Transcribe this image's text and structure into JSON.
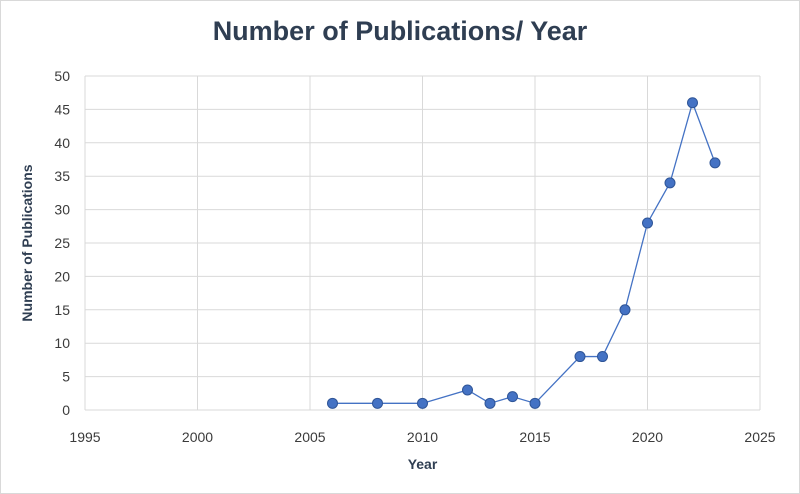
{
  "chart_data": {
    "type": "scatter",
    "title": "Number of Publications/ Year",
    "xlabel": "Year",
    "ylabel": "Number of Publications",
    "xlim": [
      1995,
      2025
    ],
    "ylim": [
      0,
      50
    ],
    "xticks": [
      1995,
      2000,
      2005,
      2010,
      2015,
      2020,
      2025
    ],
    "yticks": [
      0,
      5,
      10,
      15,
      20,
      25,
      30,
      35,
      40,
      45,
      50
    ],
    "grid": true,
    "series": [
      {
        "x": [
          2006,
          2008,
          2010,
          2012,
          2013,
          2014,
          2015,
          2017,
          2018,
          2019,
          2020,
          2021,
          2022,
          2023
        ],
        "y": [
          1,
          1,
          1,
          3,
          1,
          2,
          1,
          8,
          8,
          15,
          28,
          34,
          46,
          37
        ]
      }
    ],
    "line_color": "#4472c4",
    "marker_color": "#4472c4"
  }
}
